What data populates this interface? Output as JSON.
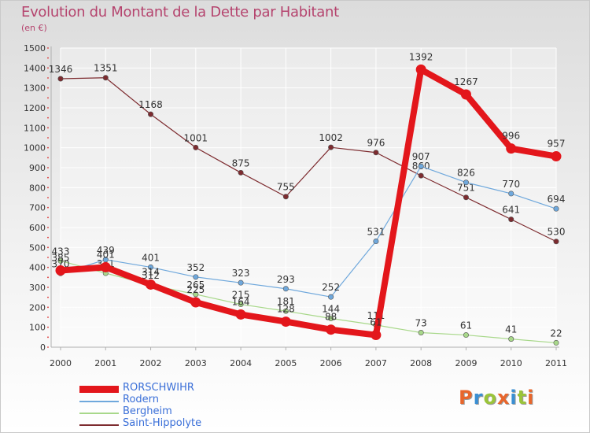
{
  "title": "Evolution du Montant de la Dette par Habitant",
  "unit": "(en €)",
  "logo": {
    "text": "Proxiti",
    "colors": [
      "#e8662c",
      "#3a8fd3",
      "#9ac43a",
      "#e8662c",
      "#3a8fd3",
      "#9ac43a",
      "#e8662c"
    ]
  },
  "chart_data": {
    "type": "line",
    "x": [
      "2000",
      "2001",
      "2002",
      "2003",
      "2004",
      "2005",
      "2006",
      "2007",
      "2008",
      "2009",
      "2010",
      "2011"
    ],
    "ylim": [
      0,
      1500
    ],
    "yticks": [
      0,
      100,
      200,
      300,
      400,
      500,
      600,
      700,
      800,
      900,
      1000,
      1100,
      1200,
      1300,
      1400,
      1500
    ],
    "grid": true,
    "legend_position": "bottom-left",
    "series": [
      {
        "name": "RORSCHWIHR",
        "color": "#e3161b",
        "width": 8,
        "values": [
          385,
          401,
          314,
          225,
          164,
          128,
          88,
          61,
          1392,
          1267,
          996,
          957
        ],
        "labels": [
          "385",
          "401",
          "314",
          "225",
          "164",
          "128",
          "88",
          "61",
          "1392",
          "1267",
          "996",
          "957"
        ]
      },
      {
        "name": "Rodern",
        "color": "#6fa8dc",
        "width": 1.2,
        "values": [
          370,
          439,
          401,
          352,
          323,
          293,
          252,
          531,
          907,
          826,
          770,
          694
        ],
        "labels": [
          "370",
          "439",
          "401",
          "352",
          "323",
          "293",
          "252",
          "531",
          "907",
          "826",
          "770",
          "694"
        ]
      },
      {
        "name": "Bergheim",
        "color": "#a8d88a",
        "width": 1.2,
        "values": [
          433,
          371,
          312,
          265,
          215,
          181,
          144,
          111,
          73,
          61,
          41,
          22
        ],
        "labels": [
          "433",
          "371",
          "312",
          "265",
          "215",
          "181",
          "144",
          "111",
          "73",
          "61",
          "41",
          "22"
        ]
      },
      {
        "name": "Saint-Hippolyte",
        "color": "#7d2b2f",
        "width": 1.2,
        "values": [
          1346,
          1351,
          1168,
          1001,
          875,
          755,
          1002,
          976,
          860,
          751,
          641,
          530
        ],
        "labels": [
          "1346",
          "1351",
          "1168",
          "1001",
          "875",
          "755",
          "1002",
          "976",
          "860",
          "751",
          "641",
          "530"
        ]
      }
    ]
  }
}
